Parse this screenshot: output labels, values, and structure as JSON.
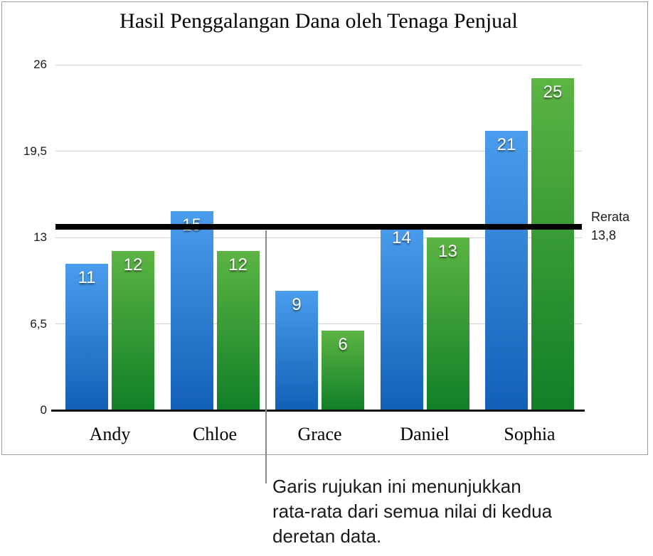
{
  "chart_data": {
    "type": "bar",
    "title": "Hasil Penggalangan Dana oleh Tenaga Penjual",
    "categories": [
      "Andy",
      "Chloe",
      "Grace",
      "Daniel",
      "Sophia"
    ],
    "series": [
      {
        "name": "blue",
        "color_top": "#4a9ded",
        "color_bottom": "#1160b6",
        "values": [
          11,
          15,
          9,
          14,
          21
        ]
      },
      {
        "name": "green",
        "color_top": "#5cb443",
        "color_bottom": "#107f27",
        "values": [
          12,
          12,
          6,
          13,
          25
        ]
      }
    ],
    "ylim": [
      0,
      26
    ],
    "yticks": [
      {
        "value": 26,
        "label": "26"
      },
      {
        "value": 19.5,
        "label": "19,5"
      },
      {
        "value": 13,
        "label": "13"
      },
      {
        "value": 6.5,
        "label": "6,5"
      },
      {
        "value": 0,
        "label": "0"
      }
    ],
    "grid": "horizontal",
    "legend": "none",
    "reference_line": {
      "value": 13.8,
      "label": "Rerata",
      "value_label": "13,8"
    }
  },
  "callout": {
    "lines": [
      "Garis rujukan ini menunjukkan",
      "rata-rata dari semua nilai di kedua",
      "deretan data."
    ]
  },
  "colors": {
    "reference_line": "#000000",
    "grid": "#d2d2d2",
    "axis": "#111111",
    "frame_border": "#9d9d9d",
    "callout_line": "#8a8a8a"
  }
}
